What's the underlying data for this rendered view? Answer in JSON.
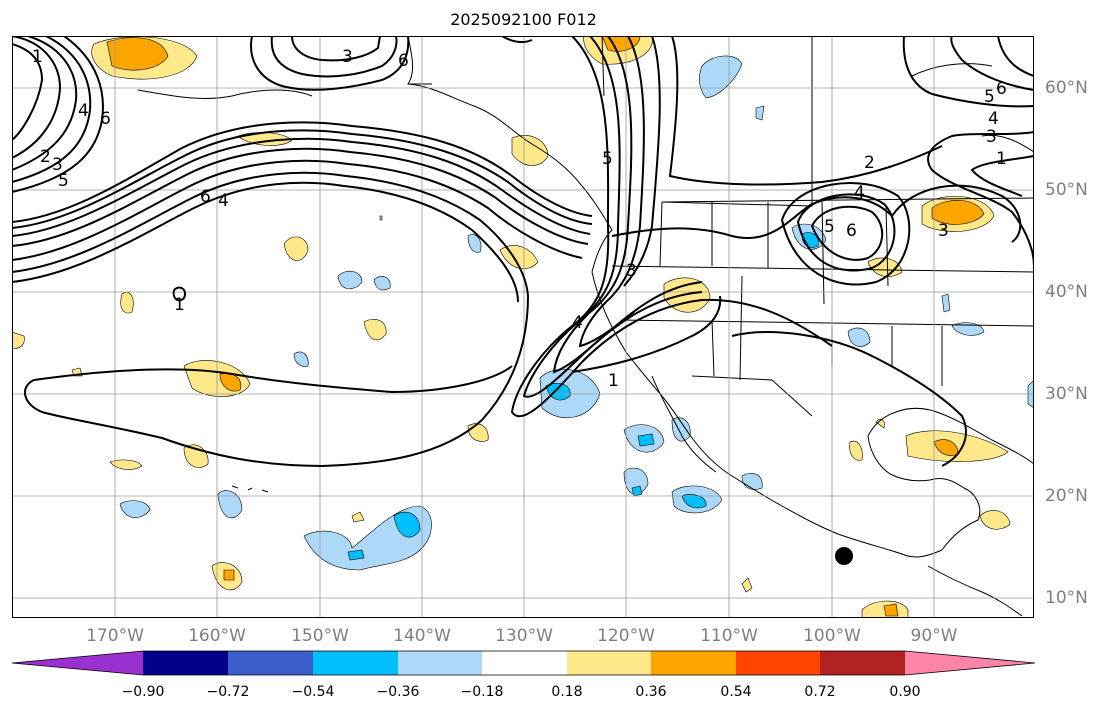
{
  "title": "2025092100 F012",
  "map": {
    "longitude_labels": [
      "170°W",
      "160°W",
      "150°W",
      "140°W",
      "130°W",
      "120°W",
      "110°W",
      "100°W",
      "90°W"
    ],
    "latitude_labels": [
      "60°N",
      "50°N",
      "40°N",
      "30°N",
      "20°N",
      "10°N"
    ],
    "contour_labels": [
      "1",
      "2",
      "3",
      "4",
      "5",
      "6"
    ],
    "marker": "black-dot"
  },
  "colorbar": {
    "ticks": [
      "−0.90",
      "−0.72",
      "−0.54",
      "−0.36",
      "−0.18",
      "0.18",
      "0.36",
      "0.54",
      "0.72",
      "0.90"
    ],
    "colors": [
      "#9b30d0",
      "#00008b",
      "#3a5fcd",
      "#00bfff",
      "#add8f7",
      "#ffffff",
      "#ffe88a",
      "#ffa500",
      "#ff4500",
      "#b22222",
      "#ff85a8"
    ]
  }
}
